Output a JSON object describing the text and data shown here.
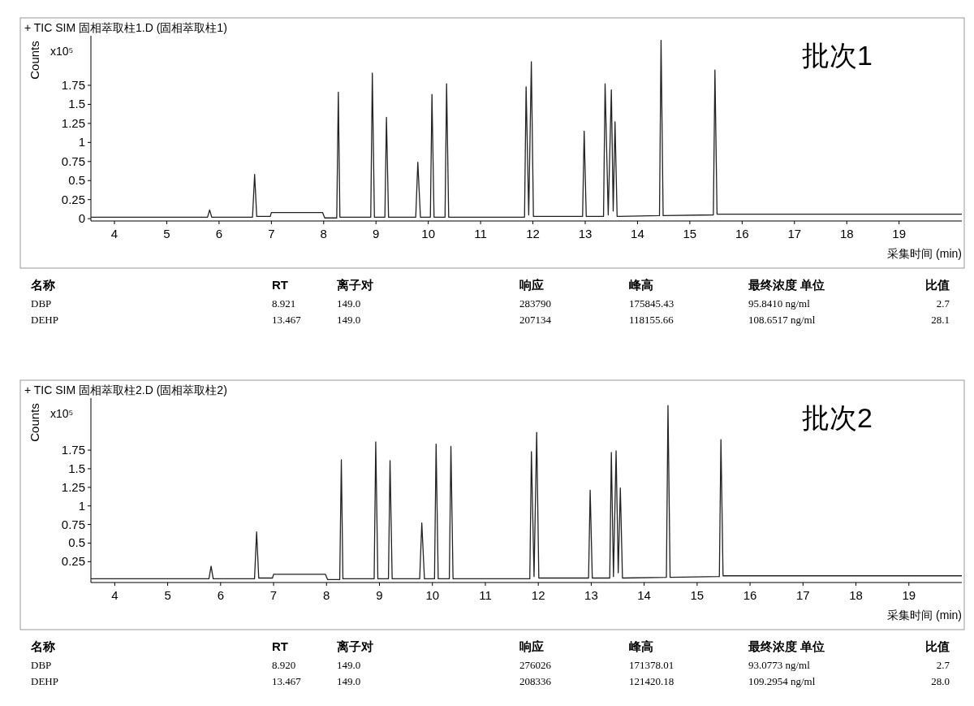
{
  "chart_data": [
    {
      "type": "line",
      "title": "+ TIC SIM 固相萃取柱1.D (固相萃取柱1)",
      "xlabel": "采集时间 (min)",
      "ylabel": "Counts",
      "annotations": [
        "x10⁵",
        "批次1"
      ],
      "xlim": [
        3.55,
        20.2
      ],
      "ylim": [
        -0.03,
        2.4
      ],
      "xticks": [
        4,
        5,
        6,
        7,
        8,
        9,
        10,
        11,
        12,
        13,
        14,
        15,
        16,
        17,
        18,
        19
      ],
      "yticks": [
        0,
        0.25,
        0.5,
        0.75,
        1,
        1.25,
        1.5,
        1.75
      ],
      "series": [
        {
          "color": "#222222",
          "x": [
            3.55,
            5.78,
            5.82,
            5.86,
            6.64,
            6.68,
            6.72,
            6.98,
            7.0,
            7.98,
            8.02,
            8.25,
            8.28,
            8.31,
            8.9,
            8.93,
            8.97,
            9.17,
            9.2,
            9.24,
            9.76,
            9.8,
            9.85,
            10.04,
            10.07,
            10.11,
            10.32,
            10.35,
            10.39,
            11.84,
            11.87,
            11.92,
            11.97,
            12.01,
            12.95,
            12.98,
            13.02,
            13.35,
            13.38,
            13.44,
            13.5,
            13.535,
            13.57,
            13.61,
            14.42,
            14.45,
            14.49,
            15.45,
            15.48,
            15.52,
            20.2
          ],
          "values": [
            0.02,
            0.02,
            0.115,
            0.02,
            0.02,
            0.58,
            0.03,
            0.03,
            0.08,
            0.08,
            0.01,
            0.01,
            1.66,
            0.02,
            0.02,
            1.91,
            0.02,
            0.02,
            1.33,
            0.02,
            0.02,
            0.74,
            0.02,
            0.02,
            1.63,
            0.02,
            0.02,
            1.77,
            0.02,
            0.02,
            1.73,
            0.05,
            2.06,
            0.03,
            0.03,
            1.15,
            0.03,
            0.03,
            1.77,
            0.05,
            1.69,
            0.1,
            1.27,
            0.03,
            0.04,
            2.34,
            0.04,
            0.05,
            1.95,
            0.06,
            0.06
          ]
        }
      ]
    },
    {
      "type": "other",
      "categories": [
        "名称",
        "RT",
        "离子对",
        "响应",
        "峰高",
        "最终浓度 单位",
        "比值"
      ],
      "cell_labels": [
        [
          "DBP",
          "8.921",
          "149.0",
          "283790",
          "175845.43",
          "95.8410 ng/ml",
          "2.7"
        ],
        [
          "DEHP",
          "13.467",
          "149.0",
          "207134",
          "118155.66",
          "108.6517 ng/ml",
          "28.1"
        ]
      ]
    },
    {
      "type": "line",
      "title": "+ TIC SIM 固相萃取柱2.D (固相萃取柱2)",
      "xlabel": "采集时间 (min)",
      "ylabel": "Counts",
      "annotations": [
        "x10⁵",
        "批次2"
      ],
      "xlim": [
        3.55,
        20.0
      ],
      "ylim": [
        -0.03,
        2.45
      ],
      "xticks": [
        4,
        5,
        6,
        7,
        8,
        9,
        10,
        11,
        12,
        13,
        14,
        15,
        16,
        17,
        18,
        19
      ],
      "yticks": [
        0.25,
        0.5,
        0.75,
        1,
        1.25,
        1.5,
        1.75
      ],
      "series": [
        {
          "color": "#222222",
          "x": [
            3.55,
            5.78,
            5.82,
            5.86,
            6.64,
            6.68,
            6.72,
            6.98,
            7.0,
            7.98,
            8.02,
            8.25,
            8.28,
            8.31,
            8.9,
            8.93,
            8.97,
            9.17,
            9.2,
            9.24,
            9.76,
            9.8,
            9.85,
            10.04,
            10.07,
            10.11,
            10.32,
            10.35,
            10.39,
            11.84,
            11.87,
            11.92,
            11.97,
            12.01,
            12.95,
            12.98,
            13.02,
            13.35,
            13.38,
            13.42,
            13.47,
            13.51,
            13.55,
            13.59,
            14.42,
            14.45,
            14.49,
            15.42,
            15.45,
            15.49,
            20.0
          ],
          "values": [
            0.02,
            0.02,
            0.19,
            0.02,
            0.02,
            0.65,
            0.03,
            0.03,
            0.08,
            0.08,
            0.01,
            0.01,
            1.62,
            0.02,
            0.02,
            1.86,
            0.02,
            0.02,
            1.61,
            0.02,
            0.02,
            0.77,
            0.02,
            0.02,
            1.83,
            0.02,
            0.02,
            1.8,
            0.02,
            0.02,
            1.73,
            0.05,
            1.99,
            0.03,
            0.03,
            1.21,
            0.03,
            0.03,
            1.72,
            0.05,
            1.74,
            0.1,
            1.24,
            0.03,
            0.04,
            2.35,
            0.04,
            0.05,
            1.89,
            0.06,
            0.06
          ]
        }
      ]
    },
    {
      "type": "other",
      "categories": [
        "名称",
        "RT",
        "离子对",
        "响应",
        "峰高",
        "最终浓度 单位",
        "比值"
      ],
      "cell_labels": [
        [
          "DBP",
          "8.920",
          "149.0",
          "276026",
          "171378.01",
          "93.0773 ng/ml",
          "2.7"
        ],
        [
          "DEHP",
          "13.467",
          "149.0",
          "208336",
          "121420.18",
          "109.2954 ng/ml",
          "28.0"
        ]
      ]
    }
  ]
}
